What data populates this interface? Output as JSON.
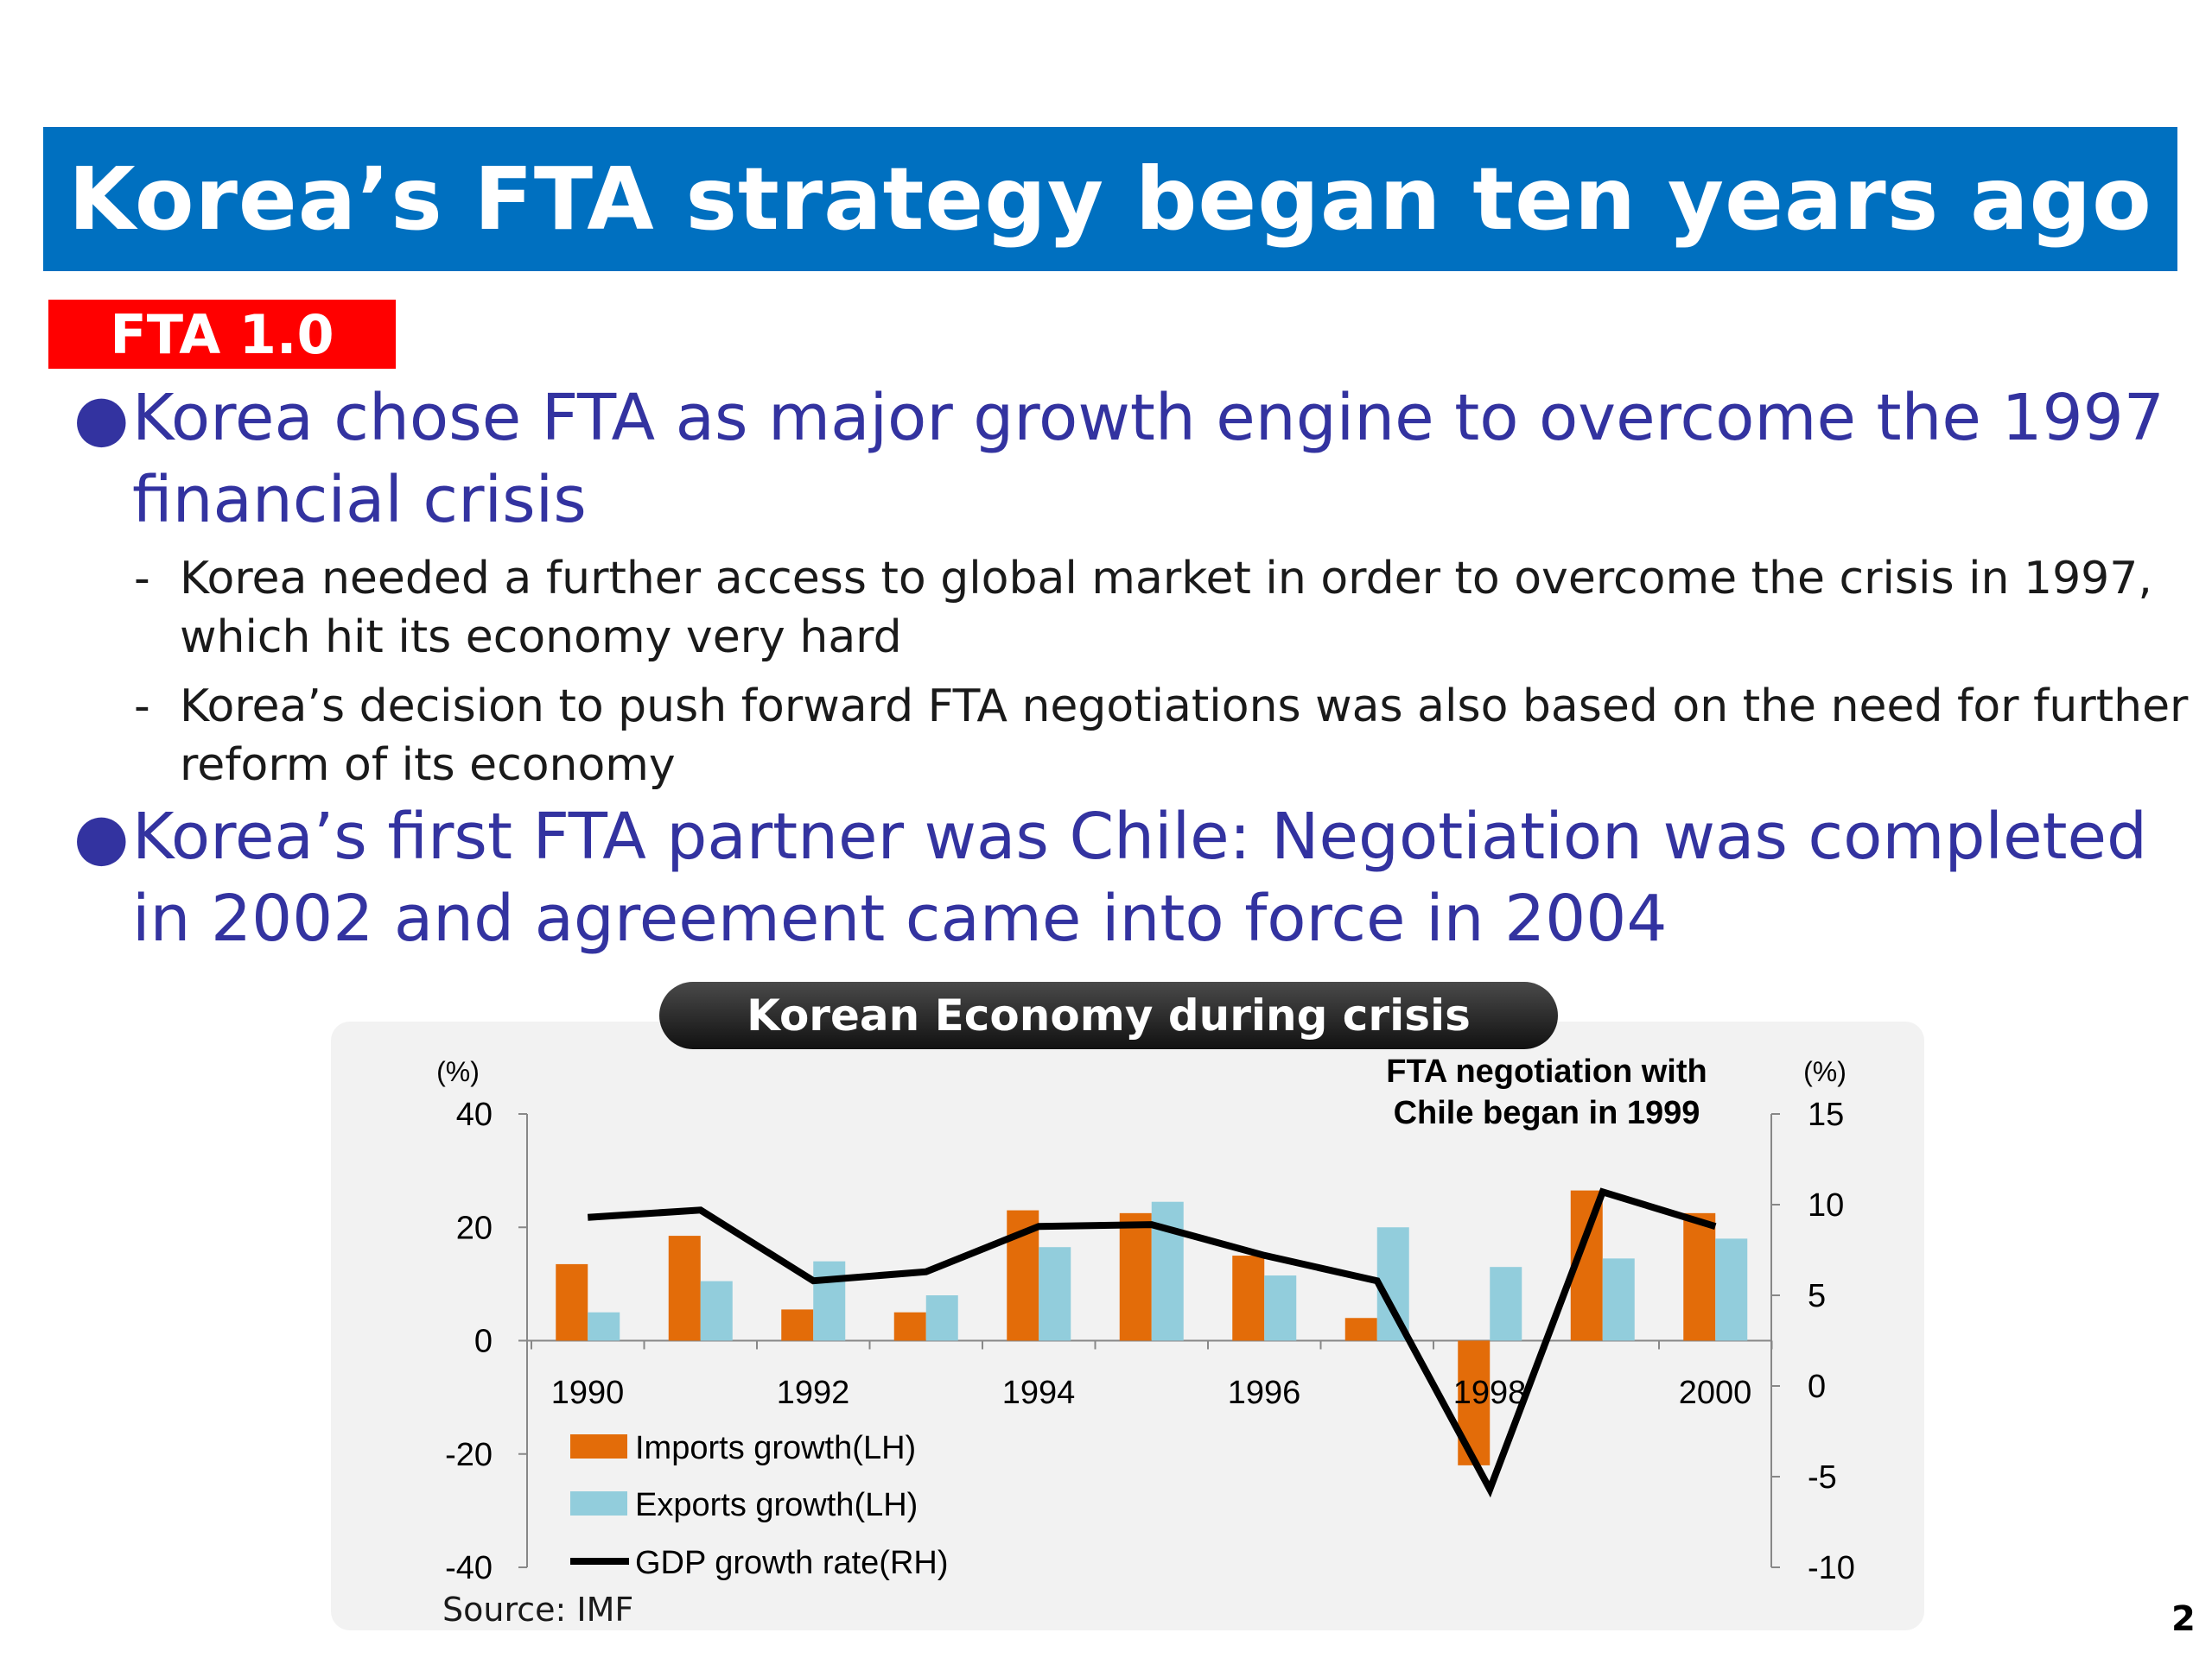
{
  "slide": {
    "title": "Korea’s FTA strategy began ten years ago",
    "badge": "FTA 1.0",
    "bullet_glyph": "●",
    "dash_glyph": "-",
    "bullets": [
      {
        "text": "Korea chose FTA as major growth engine to overcome the 1997 financial crisis",
        "subs": [
          "Korea needed a further access to global market in order to overcome the crisis in 1997, which hit its economy very hard",
          "Korea’s decision to push forward FTA negotiations was also based on the need for further reform of its economy"
        ]
      },
      {
        "text": "Korea’s first FTA partner was Chile: Negotiation was completed in 2002 and agreement came into force in 2004"
      }
    ],
    "page_number": "2"
  },
  "chart_panel_title": "Korean Economy during crisis",
  "source": "Source: IMF",
  "chart_data": {
    "type": "bar",
    "title": "Korean Economy during crisis",
    "years": [
      1990,
      1991,
      1992,
      1993,
      1994,
      1995,
      1996,
      1997,
      1998,
      1999,
      2000
    ],
    "x_tick_labels": [
      "1990",
      "1992",
      "1994",
      "1996",
      "1998",
      "2000"
    ],
    "left_axis": {
      "unit_label": "(%)",
      "min": -40,
      "max": 40,
      "ticks": [
        "40",
        "20",
        "0",
        "-20",
        "-40"
      ]
    },
    "right_axis": {
      "unit_label": "(%)",
      "min": -10,
      "max": 15,
      "ticks": [
        "15",
        "10",
        "5",
        "0",
        "-5",
        "-10"
      ]
    },
    "series": [
      {
        "name": "Imports growth(LH)",
        "type": "bar",
        "axis": "left",
        "color": "#e36c09",
        "values": [
          13.5,
          18.5,
          5.5,
          5,
          23,
          22.5,
          15,
          4,
          -22,
          26.5,
          22.5
        ]
      },
      {
        "name": "Exports growth(LH)",
        "type": "bar",
        "axis": "left",
        "color": "#92cddc",
        "values": [
          5,
          10.5,
          14,
          8,
          16.5,
          24.5,
          11.5,
          20,
          13,
          14.5,
          18
        ]
      },
      {
        "name": "GDP growth rate(RH)",
        "type": "line",
        "axis": "right",
        "color": "#000000",
        "values": [
          9.3,
          9.7,
          5.8,
          6.3,
          8.8,
          8.9,
          7.2,
          5.8,
          -5.7,
          10.7,
          8.8
        ]
      }
    ],
    "annotation": [
      "FTA negotiation with",
      "Chile began in 1999"
    ],
    "legend_position": "bottom-left",
    "grid": false
  }
}
